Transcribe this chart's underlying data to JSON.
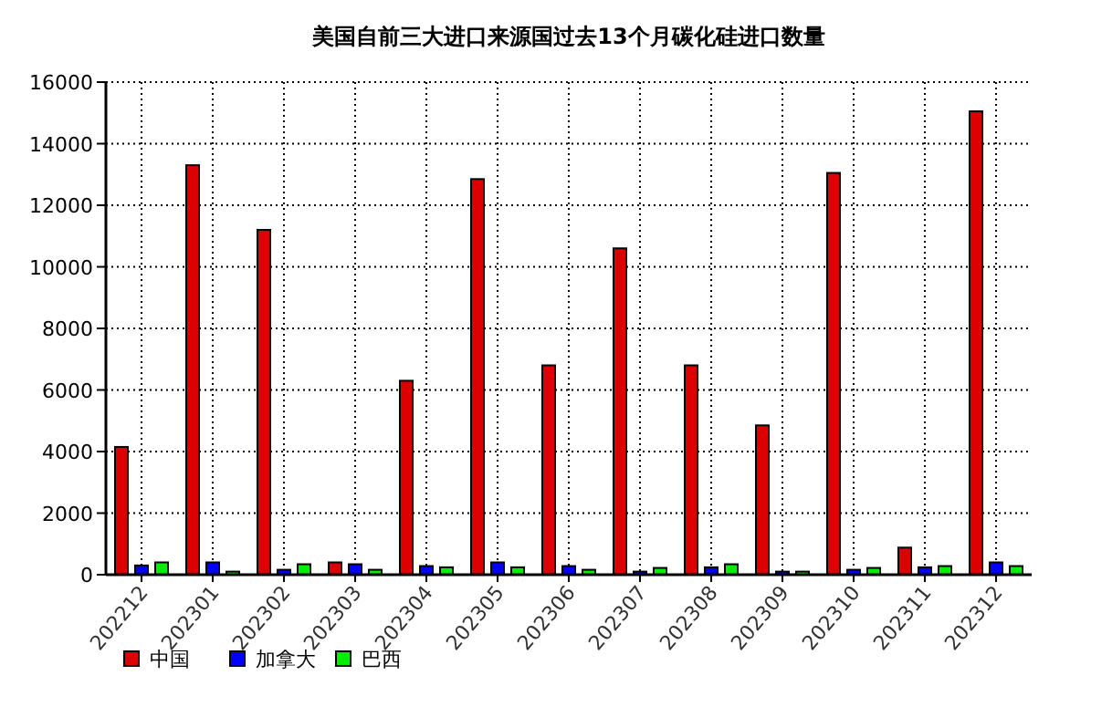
{
  "chart_data": {
    "type": "bar",
    "title": "美国自前三大进口来源国过去13个月碳化硅进口数量",
    "categories": [
      "202212",
      "202301",
      "202302",
      "202303",
      "202304",
      "202305",
      "202306",
      "202307",
      "202308",
      "202309",
      "202310",
      "202311",
      "202312"
    ],
    "series": [
      {
        "name": "中国",
        "color": "#dd0000",
        "values": [
          4150,
          13300,
          11200,
          400,
          6300,
          12850,
          6800,
          10600,
          6800,
          4850,
          13050,
          880,
          15050
        ]
      },
      {
        "name": "加拿大",
        "color": "#0000ff",
        "values": [
          300,
          400,
          160,
          340,
          280,
          400,
          280,
          100,
          240,
          100,
          160,
          240,
          400
        ]
      },
      {
        "name": "巴西",
        "color": "#00ee00",
        "values": [
          400,
          100,
          340,
          160,
          240,
          240,
          160,
          220,
          340,
          100,
          220,
          280,
          280
        ]
      }
    ],
    "ylim": [
      0,
      16000
    ],
    "yticks": [
      0,
      2000,
      4000,
      6000,
      8000,
      10000,
      12000,
      14000,
      16000
    ],
    "grid": true,
    "legend": "bottom left"
  }
}
